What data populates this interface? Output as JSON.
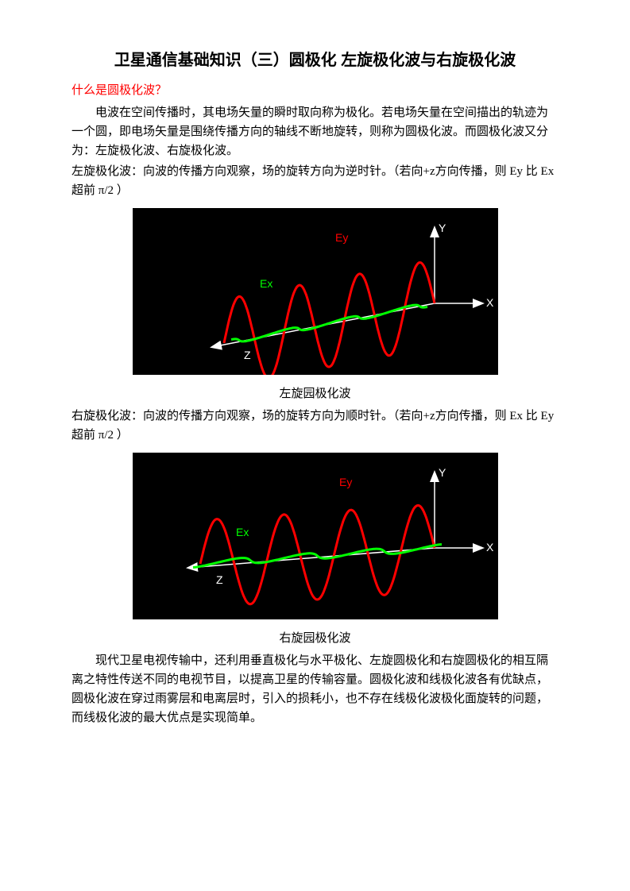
{
  "title": "卫星通信基础知识（三）圆极化 左旋极化波与右旋极化波",
  "heading1": "什么是圆极化波？",
  "p1": "电波在空间传播时，其电场矢量的瞬时取向称为极化。若电场矢量在空间描出的轨迹为一个圆，即电场矢量是围绕传播方向的轴线不断地旋转，则称为圆极化波。而圆极化波又分为：左旋极化波、右旋极化波。",
  "p2": "左旋极化波：向波的传播方向观察，场的旋转方向为逆时针。（若向+z方向传播，则 Ey 比 Ex 超前 π/2 ）",
  "cap1": "左旋园极化波",
  "p3": "右旋极化波：向波的传播方向观察，场的旋转方向为顺时针。（若向+z方向传播，则 Ex 比 Ey 超前 π/2 ）",
  "cap2": "右旋园极化波",
  "p4": "现代卫星电视传输中，还利用垂直极化与水平极化、左旋圆极化和右旋圆极化的相互隔离之特性传送不同的电视节目，以提高卫星的传输容量。圆极化波和线极化波各有优缺点，圆极化波在穿过雨雾层和电离层时，引入的损耗小，也不存在线极化波极化面旋转的问题，而线极化波的最大优点是实现简单。",
  "fig": {
    "bg": "#000000",
    "ey_color": "#ff0000",
    "ex_color": "#00ff00",
    "axis_color": "#ffffff",
    "labels": {
      "ex": "Ex",
      "ey": "Ey",
      "x": "X",
      "y": "Y",
      "z": "Z"
    },
    "ey_amplitude": 55,
    "ex_amplitude": 18,
    "cycles": 3.5
  }
}
